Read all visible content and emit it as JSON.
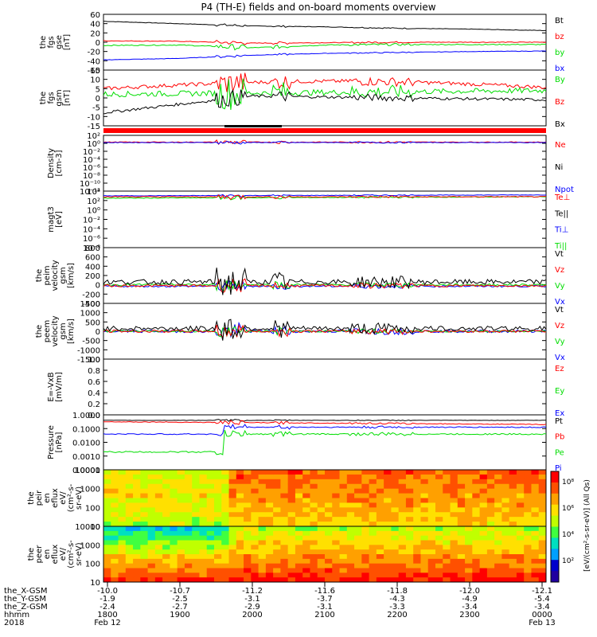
{
  "title": "P4 (TH-E) fields and on-board moments overview",
  "colors": {
    "black": "#000000",
    "red": "#ff0000",
    "green": "#00dd00",
    "blue": "#0000ff"
  },
  "panels": [
    {
      "id": "fgs-gse",
      "ylabel": [
        "the",
        "fgs",
        "gse",
        "[nT]"
      ],
      "ticks": [
        "60",
        "40",
        "20",
        "0",
        "-20",
        "-40",
        "-60"
      ],
      "legend": [
        {
          "text": "Bt",
          "color": "black"
        },
        {
          "text": "bz",
          "color": "red"
        },
        {
          "text": "by",
          "color": "green"
        },
        {
          "text": "bx",
          "color": "blue"
        }
      ]
    },
    {
      "id": "fgs-gsm",
      "ylabel": [
        "the",
        "fgs",
        "gsm",
        "[nT]"
      ],
      "ticks": [
        "15",
        "10",
        "5",
        "0",
        "-5",
        "-10",
        "-15"
      ],
      "legend": [
        {
          "text": "By",
          "color": "green"
        },
        {
          "text": "Bz",
          "color": "red"
        },
        {
          "text": "Bx",
          "color": "black"
        }
      ]
    },
    {
      "id": "density",
      "ylabel": [
        "Density",
        "[cm-3]"
      ],
      "ticks": [
        "10²",
        "10⁰",
        "10⁻²",
        "10⁻⁴",
        "10⁻⁶",
        "10⁻⁸",
        "10⁻¹⁰",
        "10⁻¹²"
      ],
      "legend": [
        {
          "text": "Ne",
          "color": "red"
        },
        {
          "text": "Ni",
          "color": "black"
        },
        {
          "text": "Npot",
          "color": "blue"
        }
      ]
    },
    {
      "id": "temp",
      "ylabel": [
        "magt3",
        "[eV]"
      ],
      "ticks": [
        "10⁴",
        "10²",
        "10⁰",
        "10⁻²",
        "10⁻⁴",
        "10⁻⁶",
        "10⁻⁸"
      ],
      "legend": [
        {
          "text": "Te⊥",
          "color": "red"
        },
        {
          "text": "Te||",
          "color": "black"
        },
        {
          "text": "Ti⊥",
          "color": "blue"
        },
        {
          "text": "Ti||",
          "color": "green"
        }
      ]
    },
    {
      "id": "peim",
      "ylabel": [
        "the",
        "peim",
        "velocity",
        "gsm",
        "[km/s]"
      ],
      "ticks": [
        "800",
        "600",
        "400",
        "200",
        "0",
        "-200",
        "-400"
      ],
      "legend": [
        {
          "text": "Vt",
          "color": "black"
        },
        {
          "text": "Vz",
          "color": "red"
        },
        {
          "text": "Vy",
          "color": "green"
        },
        {
          "text": "Vx",
          "color": "blue"
        }
      ]
    },
    {
      "id": "peem",
      "ylabel": [
        "the",
        "peem",
        "velocity",
        "gsm",
        "[km/s]"
      ],
      "ticks": [
        "1500",
        "1000",
        "500",
        "0",
        "-500",
        "-1000",
        "-1500"
      ],
      "legend": [
        {
          "text": "Vt",
          "color": "black"
        },
        {
          "text": "Vz",
          "color": "red"
        },
        {
          "text": "Vy",
          "color": "green"
        },
        {
          "text": "Vx",
          "color": "blue"
        }
      ]
    },
    {
      "id": "efield",
      "ylabel": [
        "E=-VxB",
        "[mV/m]"
      ],
      "ticks": [
        "1.0",
        "0.8",
        "0.6",
        "0.4",
        "0.2",
        "0.0"
      ],
      "legend": [
        {
          "text": "Ez",
          "color": "red"
        },
        {
          "text": "Ey",
          "color": "green"
        },
        {
          "text": "Ex",
          "color": "blue"
        }
      ]
    },
    {
      "id": "pressure",
      "ylabel": [
        "Pressure",
        "[nPa]"
      ],
      "ticks": [
        "1.0000",
        "0.1000",
        "0.0100",
        "0.0010",
        "0.0001"
      ],
      "legend": [
        {
          "text": "Pt",
          "color": "black"
        },
        {
          "text": "Pb",
          "color": "red"
        },
        {
          "text": "Pe",
          "color": "green"
        },
        {
          "text": "Pi",
          "color": "blue"
        }
      ]
    },
    {
      "id": "peir",
      "ylabel": [
        "the",
        "peir",
        "en",
        "eflux",
        "eV/",
        "(cm²-s-",
        "sr-eV)"
      ],
      "ticks": [
        "10000",
        "1000",
        "100",
        "10"
      ],
      "legend": []
    },
    {
      "id": "peer",
      "ylabel": [
        "the",
        "peer",
        "en",
        "eflux",
        "eV/",
        "(cm²-s-",
        "sr-eV)"
      ],
      "ticks": [
        "10000",
        "1000",
        "100",
        "10"
      ],
      "legend": []
    }
  ],
  "colorbar": {
    "label": "[eV/(cm²-s-sr-eV)] (All Qs)",
    "ticks": [
      "10⁸",
      "10⁶",
      "10⁴",
      "10²"
    ]
  },
  "axis_rows": [
    {
      "label": "the_X-GSM",
      "values": [
        "-10.0",
        "-10.7",
        "-11.2",
        "-11.6",
        "-11.8",
        "-12.0",
        "-12.1"
      ]
    },
    {
      "label": "the_Y-GSM",
      "values": [
        "-1.9",
        "-2.5",
        "-3.1",
        "-3.7",
        "-4.3",
        "-4.9",
        "-5.4"
      ]
    },
    {
      "label": "the_Z-GSM",
      "values": [
        "-2.4",
        "-2.7",
        "-2.9",
        "-3.1",
        "-3.3",
        "-3.4",
        "-3.4"
      ]
    },
    {
      "label": "hhmm",
      "values": [
        "1800",
        "1900",
        "2000",
        "2100",
        "2200",
        "2300",
        "0000"
      ]
    },
    {
      "label": "2018",
      "values": [
        "Feb 12",
        "",
        "",
        "",
        "",
        "",
        "Feb 13"
      ]
    }
  ],
  "chart_data": {
    "type": "line",
    "title": "P4 (TH-E) fields and on-board moments overview",
    "x": [
      "1800",
      "1900",
      "2000",
      "2100",
      "2200",
      "2300",
      "0000"
    ],
    "xlim": [
      "2018-02-12 18:00",
      "2018-02-13 00:00"
    ],
    "series": [
      {
        "name": "Bt",
        "values": [
          45,
          40,
          35,
          33,
          30,
          28,
          25
        ]
      },
      {
        "name": "bz",
        "values": [
          3,
          2,
          -2,
          -1,
          0,
          0,
          0
        ]
      },
      {
        "name": "by",
        "values": [
          -7,
          -6,
          -12,
          -6,
          -5,
          -5,
          -5
        ]
      },
      {
        "name": "bx",
        "values": [
          -38,
          -35,
          -28,
          -24,
          -22,
          -20,
          -19
        ]
      }
    ],
    "ylim": [
      -60,
      60
    ]
  }
}
